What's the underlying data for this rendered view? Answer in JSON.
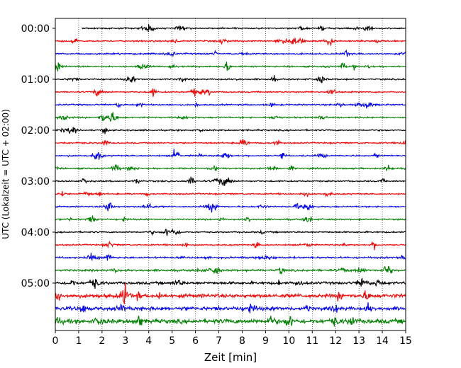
{
  "chart_data": {
    "type": "line",
    "xlabel": "Zeit  [min]",
    "ylabel": "UTC (Lokalzeit = UTC + 02:00)",
    "xlim": [
      0,
      15
    ],
    "x_ticks": [
      "0",
      "1",
      "2",
      "3",
      "4",
      "5",
      "6",
      "7",
      "8",
      "9",
      "10",
      "11",
      "12",
      "13",
      "14",
      "15"
    ],
    "y_tick_labels": [
      "00:00",
      "01:00",
      "02:00",
      "03:00",
      "04:00",
      "05:00"
    ],
    "grid": "vertical dotted lines at each minute",
    "trace_interval_min": 15,
    "trace_count": 24,
    "trace_start_min": [
      1.15,
      0,
      0,
      0,
      0,
      0,
      0,
      0,
      0,
      0,
      0,
      0,
      0,
      0,
      0,
      0,
      0,
      0,
      0,
      0,
      0,
      0,
      0,
      0
    ],
    "trace_relative_noise": [
      1.0,
      1.0,
      1.0,
      1.0,
      1.0,
      1.0,
      1.0,
      1.0,
      1.0,
      1.0,
      1.0,
      1.0,
      1.0,
      1.0,
      1.0,
      1.0,
      1.0,
      1.0,
      1.3,
      1.4,
      1.8,
      2.6,
      2.6,
      3.0
    ],
    "colors": [
      "#000000",
      "#ff0000",
      "#0000ff",
      "#008000"
    ]
  }
}
